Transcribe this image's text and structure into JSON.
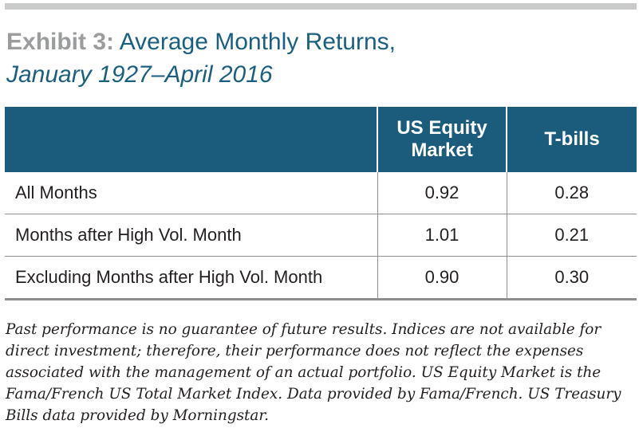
{
  "chart_data": {
    "type": "table",
    "title_prefix": "Exhibit 3:",
    "title": "Average Monthly Returns,",
    "subtitle": "January 1927–April 2016",
    "columns": [
      "",
      "US Equity Market",
      "T-bills"
    ],
    "rows": [
      {
        "label": "All Months",
        "us_equity": "0.92",
        "t_bills": "0.28"
      },
      {
        "label": "Months after High Vol. Month",
        "us_equity": "1.01",
        "t_bills": "0.21"
      },
      {
        "label": "Excluding Months after High Vol. Month",
        "us_equity": "0.90",
        "t_bills": "0.30"
      }
    ]
  },
  "footnote": "Past performance is no guarantee of future results. Indices are not available for direct investment; therefore, their performance does not reflect the expenses associated with the management of an actual portfolio. US Equity Market is the Fama/French US Total Market Index. Data provided by Fama/French. US Treasury Bills data provided by Morningstar.",
  "colors": {
    "header_bg": "#1b5c7d",
    "title_blue": "#1b5f80",
    "title_prefix_gray": "#9a9c9e",
    "rule_gray": "#c9cacb"
  }
}
